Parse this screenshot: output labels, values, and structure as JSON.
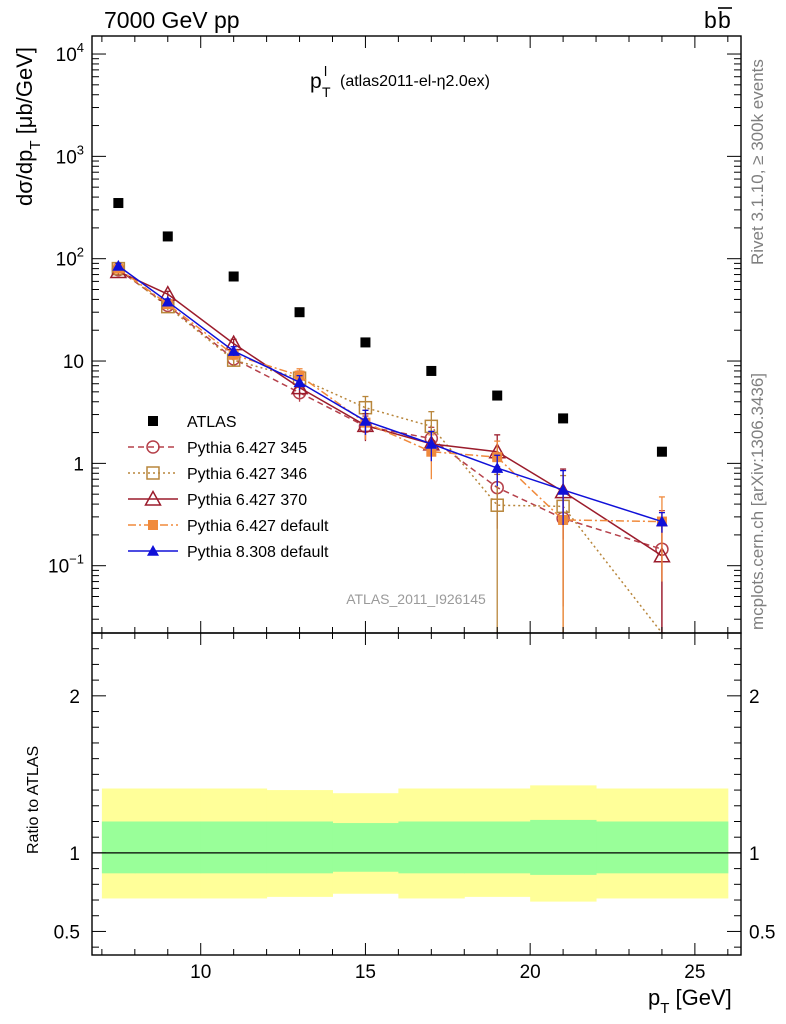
{
  "header": {
    "left": "7000 GeV pp",
    "right_main": "b",
    "right_bar": "b"
  },
  "side_labels": {
    "rivet": "Rivet 3.1.10, ≥ 300k events",
    "mcplots": "mcplots.cern.ch [arXiv:1306.3436]"
  },
  "chart_data": {
    "type": "scatter",
    "title_main": "p",
    "title_sup": "l",
    "title_sub": "T",
    "title_rest": "(atlas2011-el-η2.0ex)",
    "watermark": "ATLAS_2011_I926145",
    "xlabel_main": "p",
    "xlabel_sub": "T",
    "xlabel_rest": " [GeV]",
    "ylabel_main": "dσ/dp",
    "ylabel_sub": "T",
    "ylabel_rest": " [μb/GeV]",
    "ratio_ylabel": "Ratio to ATLAS",
    "xlim": [
      6.7,
      26.4
    ],
    "ylim_log": [
      0.022,
      15000
    ],
    "ratio_ylim": [
      0.35,
      2.4
    ],
    "x_ticks": [
      {
        "v": 10,
        "label": "10"
      },
      {
        "v": 15,
        "label": "15"
      },
      {
        "v": 20,
        "label": "20"
      },
      {
        "v": 25,
        "label": "25"
      }
    ],
    "y_ticks": [
      {
        "v": 0.1,
        "b": "10",
        "e": "−1"
      },
      {
        "v": 1,
        "b": "1",
        "e": ""
      },
      {
        "v": 10,
        "b": "10",
        "e": ""
      },
      {
        "v": 100,
        "b": "10",
        "e": "2"
      },
      {
        "v": 1000,
        "b": "10",
        "e": "3"
      },
      {
        "v": 10000,
        "b": "10",
        "e": "4"
      }
    ],
    "ratio_ticks": [
      {
        "v": 0.5,
        "label": "0.5"
      },
      {
        "v": 1,
        "label": "1"
      },
      {
        "v": 2,
        "label": "2"
      }
    ],
    "bins": [
      7,
      8,
      10,
      12,
      14,
      16,
      18,
      20,
      22,
      26
    ],
    "data": {
      "name": "ATLAS",
      "x": [
        7.5,
        9,
        11,
        13,
        15,
        17,
        19,
        21,
        24
      ],
      "y": [
        350,
        165,
        67,
        30,
        15.2,
        8,
        4.6,
        2.75,
        1.3
      ],
      "ratio_inner": [
        [
          0.87,
          1.2
        ],
        [
          0.87,
          1.2
        ],
        [
          0.87,
          1.2
        ],
        [
          0.87,
          1.2
        ],
        [
          0.88,
          1.19
        ],
        [
          0.87,
          1.2
        ],
        [
          0.87,
          1.2
        ],
        [
          0.86,
          1.21
        ],
        [
          0.87,
          1.2
        ]
      ],
      "ratio_outer": [
        [
          0.71,
          1.41
        ],
        [
          0.71,
          1.41
        ],
        [
          0.71,
          1.41
        ],
        [
          0.72,
          1.4
        ],
        [
          0.74,
          1.38
        ],
        [
          0.71,
          1.41
        ],
        [
          0.72,
          1.41
        ],
        [
          0.69,
          1.43
        ],
        [
          0.71,
          1.41
        ]
      ]
    },
    "series": [
      {
        "name": "Pythia 6.427 345",
        "color": "#b5404a",
        "marker": "circle-open",
        "dash": "6,4",
        "y": [
          78,
          35,
          10.5,
          4.9,
          2.3,
          1.75,
          0.58,
          0.29,
          0.145
        ],
        "err": [
          5,
          2.5,
          1.2,
          0.9,
          0.6,
          0.5,
          0.35,
          0.25,
          0.2
        ]
      },
      {
        "name": "Pythia 6.427 346",
        "color": "#b8863b",
        "marker": "square-open",
        "dash": "2,3",
        "y": [
          80,
          34,
          10.2,
          6.8,
          3.5,
          2.3,
          0.39,
          0.38,
          0.0
        ],
        "err": [
          5,
          2.5,
          1.2,
          1.2,
          1.0,
          0.9,
          0.39,
          0.38,
          0.0
        ]
      },
      {
        "name": "Pythia 6.427 370",
        "color": "#9b1c2c",
        "marker": "triangle-open",
        "dash": "",
        "y": [
          75,
          45,
          14.8,
          5.5,
          2.35,
          1.55,
          1.3,
          0.53,
          0.125
        ],
        "err": [
          5,
          3,
          1.5,
          1.0,
          0.7,
          0.5,
          0.6,
          0.35,
          0.125
        ]
      },
      {
        "name": "Pythia 6.427 default",
        "color": "#f08a3c",
        "marker": "square-filled",
        "dash": "8,3,2,3",
        "y": [
          80,
          36,
          11.5,
          7.2,
          2.5,
          1.3,
          1.15,
          0.28,
          0.27
        ],
        "err": [
          5,
          2.5,
          1.3,
          1.2,
          0.8,
          0.6,
          0.5,
          0.28,
          0.2
        ]
      },
      {
        "name": "Pythia 8.308 default",
        "color": "#1010d8",
        "marker": "triangle-filled",
        "dash": "",
        "y": [
          85,
          38,
          12.5,
          6.2,
          2.6,
          1.55,
          0.9,
          0.55,
          0.27
        ],
        "err": [
          5,
          2.5,
          1.3,
          1.0,
          0.7,
          0.5,
          0.3,
          0.3,
          0.06
        ]
      }
    ]
  }
}
